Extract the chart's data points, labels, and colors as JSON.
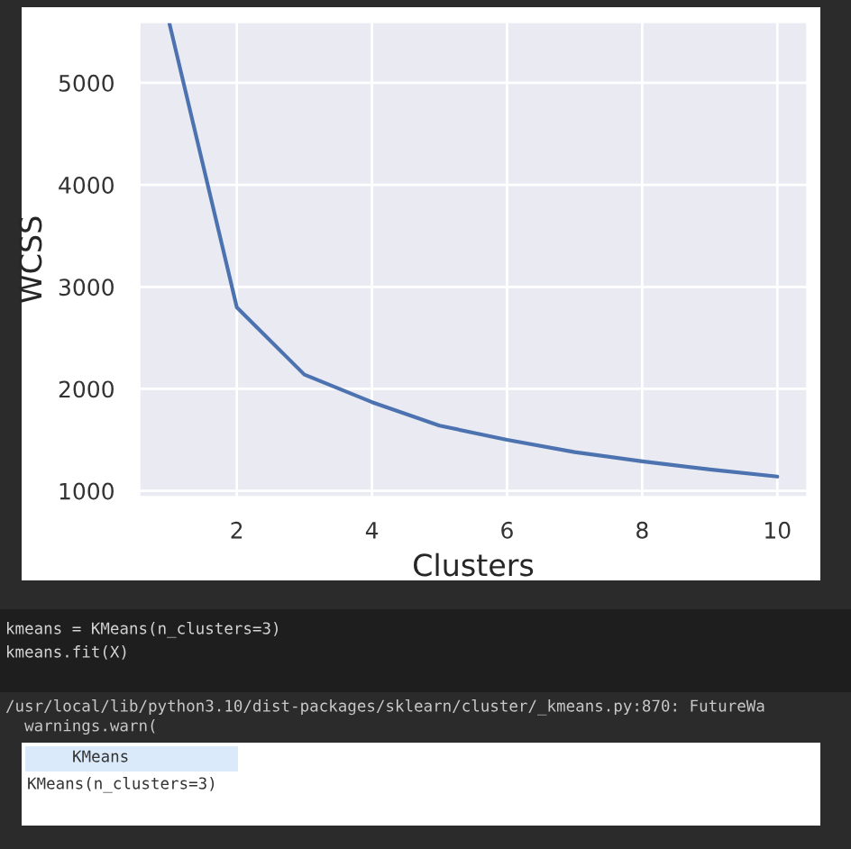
{
  "chart_data": {
    "type": "line",
    "xlabel": "Clusters",
    "ylabel": "WCSS",
    "x": [
      1,
      2,
      3,
      4,
      5,
      6,
      7,
      8,
      9,
      10
    ],
    "series": [
      {
        "color": "#4c72b0",
        "values": [
          5590,
          2800,
          2140,
          1870,
          1640,
          1500,
          1380,
          1290,
          1210,
          1140
        ]
      }
    ],
    "xlim": [
      0.55,
      10.45
    ],
    "ylim": [
      935,
      5600
    ],
    "xticks": [
      2,
      4,
      6,
      8,
      10
    ],
    "yticks": [
      1000,
      2000,
      3000,
      4000,
      5000
    ],
    "grid": true,
    "legend": false,
    "marker": "none",
    "line_style": "solid",
    "annotations": [
      "kmeans = KMeans(n_clusters=3)",
      "kmeans.fit(X)",
      "/usr/local/lib/python3.10/dist-packages/sklearn/cluster/_kmeans.py:870: FutureWa",
      "  warnings.warn(",
      "KMeans",
      "KMeans(n_clusters=3)"
    ]
  }
}
